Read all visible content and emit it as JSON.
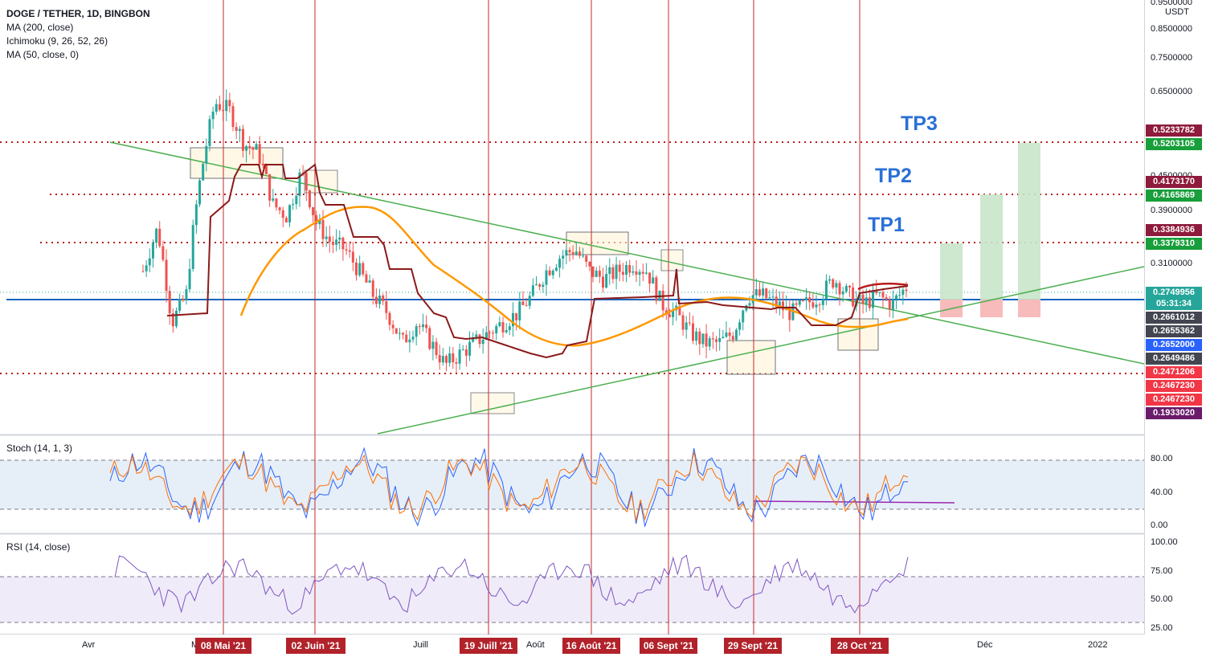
{
  "legend": {
    "symbol": "DOGE / TETHER, 1D, BINGBON",
    "ma200": "MA (200, close)",
    "ichimoku": "Ichimoku (9, 26, 52, 26)",
    "ma50": "MA (50, close, 0)"
  },
  "panes": {
    "stoch_label": "Stoch (14, 1, 3)",
    "rsi_label": "RSI (14, close)"
  },
  "price_axis": {
    "unit": "USDT",
    "ticks": [
      {
        "label": "0.9500000",
        "value": 0.95
      },
      {
        "label": "0.8500000",
        "value": 0.85
      },
      {
        "label": "0.7500000",
        "value": 0.75
      },
      {
        "label": "0.6500000",
        "value": 0.65
      },
      {
        "label": "0.4500000",
        "value": 0.45
      },
      {
        "label": "0.3900000",
        "value": 0.39
      },
      {
        "label": "0.3100000",
        "value": 0.31
      }
    ],
    "tags": [
      {
        "label": "0.5233782",
        "color": "#8e1a3c"
      },
      {
        "label": "0.5203105",
        "color": "#189e3a"
      },
      {
        "label": "0.4173170",
        "color": "#8e1a3c"
      },
      {
        "label": "0.4165869",
        "color": "#189e3a"
      },
      {
        "label": "0.3384936",
        "color": "#8e1a3c"
      },
      {
        "label": "0.3379310",
        "color": "#189e3a"
      },
      {
        "label": "0.2749956",
        "color": "#26a69a"
      },
      {
        "label": "05:31:34",
        "color": "#26a69a"
      },
      {
        "label": "0.2661012",
        "color": "#434651"
      },
      {
        "label": "0.2655362",
        "color": "#434651"
      },
      {
        "label": "0.2652000",
        "color": "#2962ff"
      },
      {
        "label": "0.2649486",
        "color": "#434651"
      },
      {
        "label": "0.2471206",
        "color": "#f23645"
      },
      {
        "label": "0.2467230",
        "color": "#f23645"
      },
      {
        "label": "0.2467230",
        "color": "#f23645"
      },
      {
        "label": "0.1933020",
        "color": "#6a1b6a"
      }
    ]
  },
  "stoch_axis": [
    "80.00",
    "40.00",
    "0.00"
  ],
  "rsi_axis": [
    "100.00",
    "75.00",
    "50.00",
    "25.00"
  ],
  "time_axis": {
    "months": [
      {
        "label": "Avr"
      },
      {
        "label": "M"
      },
      {
        "label": "Juill"
      },
      {
        "label": "Août"
      },
      {
        "label": "Déc"
      },
      {
        "label": "2022"
      }
    ],
    "date_tags": [
      "08 Mai '21",
      "02 Juin '21",
      "19 Juill '21",
      "16 Août '21",
      "06 Sept '21",
      "29 Sept '21",
      "28 Oct '21"
    ]
  },
  "targets": [
    "TP1",
    "TP2",
    "TP3"
  ],
  "colors": {
    "bull": "#26a69a",
    "bear": "#ef5350",
    "ma50": "#ff9800",
    "ichimoku": "#8b1a1a",
    "trendline": "#4caf50",
    "vline": "#c62828",
    "hline": "#1565c0",
    "stoch_k": "#2962ff",
    "stoch_d": "#ff6d00",
    "rsi": "#7e57c2"
  },
  "chart_data": {
    "type": "candlestick",
    "symbol": "DOGE / TETHER",
    "timeframe": "1D",
    "exchange": "BINGBON",
    "last_price": 0.2749956,
    "countdown": "05:31:34",
    "horizontal_levels": [
      0.2652,
      0.3379,
      0.4166,
      0.5203,
      0.2467
    ],
    "targets": [
      {
        "name": "TP1",
        "value": 0.337931
      },
      {
        "name": "TP2",
        "value": 0.4165869
      },
      {
        "name": "TP3",
        "value": 0.5203105
      }
    ],
    "key_dates": [
      "08 Mai '21",
      "02 Juin '21",
      "19 Juill '21",
      "16 Août '21",
      "06 Sept '21",
      "29 Sept '21",
      "28 Oct '21"
    ],
    "price_path": [
      0.3,
      0.36,
      0.24,
      0.27,
      0.45,
      0.62,
      0.6,
      0.52,
      0.5,
      0.4,
      0.38,
      0.46,
      0.37,
      0.34,
      0.33,
      0.3,
      0.27,
      0.25,
      0.22,
      0.24,
      0.22,
      0.2,
      0.21,
      0.22,
      0.23,
      0.24,
      0.25,
      0.27,
      0.3,
      0.32,
      0.33,
      0.3,
      0.29,
      0.3,
      0.31,
      0.3,
      0.26,
      0.25,
      0.23,
      0.22,
      0.22,
      0.23,
      0.27,
      0.27,
      0.26,
      0.25,
      0.26,
      0.27,
      0.29,
      0.27,
      0.26,
      0.27,
      0.26,
      0.28
    ],
    "stoch_levels": [
      20,
      80
    ],
    "rsi_levels": [
      30,
      70
    ]
  }
}
